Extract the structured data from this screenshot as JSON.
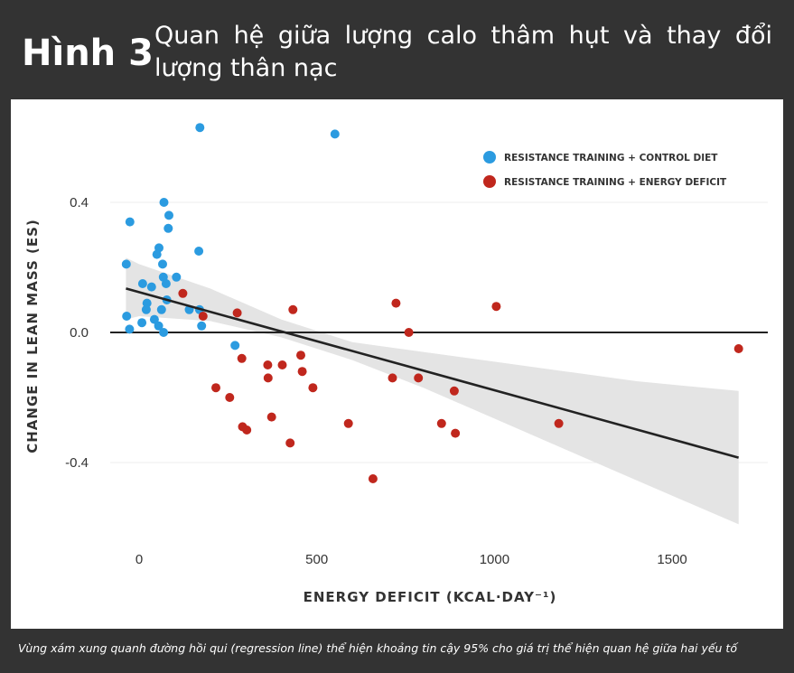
{
  "header": {
    "figure_number": "Hình 3",
    "title": "Quan hệ giữa lượng calo thâm hụt và thay đổi lượng thân nạc"
  },
  "caption": "Vùng xám xung quanh đường hồi qui (regression line) thể hiện khoảng tin cậy 95% cho giá trị thể hiện quan hệ giữa hai yếu tố",
  "colors": {
    "background": "#333333",
    "panel": "#ffffff",
    "control": "#2b9be0",
    "deficit": "#c0271d",
    "confidence_band": "#e4e4e4",
    "regression_line": "#222222"
  },
  "chart_data": {
    "type": "scatter",
    "xlabel": "ENERGY DEFICIT (KCAL·DAY⁻¹)",
    "ylabel": "CHANGE IN LEAN MASS (ES)",
    "xlim": [
      -60,
      1760
    ],
    "ylim": [
      -0.62,
      0.66
    ],
    "x_ticks": [
      {
        "value": 0,
        "label": "0"
      },
      {
        "value": 500,
        "label": "500"
      },
      {
        "value": 1000,
        "label": "1000"
      },
      {
        "value": 1500,
        "label": "1500"
      }
    ],
    "y_ticks": [
      {
        "value": 0.4,
        "label": "0.4"
      },
      {
        "value": 0.0,
        "label": "0.0"
      },
      {
        "value": -0.4,
        "label": "-0.4"
      }
    ],
    "grid": "horizontal",
    "legend_position": "top-right",
    "series": [
      {
        "name": "RESISTANCE TRAINING + CONTROL DIET",
        "color": "#2b9be0",
        "points": [
          [
            171,
            0.63
          ],
          [
            551,
            0.61
          ],
          [
            -26,
            0.34
          ],
          [
            70,
            0.4
          ],
          [
            84,
            0.36
          ],
          [
            82,
            0.32
          ],
          [
            168,
            0.25
          ],
          [
            56,
            0.26
          ],
          [
            50,
            0.24
          ],
          [
            -36,
            0.21
          ],
          [
            66,
            0.21
          ],
          [
            68,
            0.17
          ],
          [
            105,
            0.17
          ],
          [
            10,
            0.15
          ],
          [
            35,
            0.14
          ],
          [
            76,
            0.15
          ],
          [
            78,
            0.1
          ],
          [
            22,
            0.09
          ],
          [
            20,
            0.07
          ],
          [
            63,
            0.07
          ],
          [
            141,
            0.07
          ],
          [
            170,
            0.07
          ],
          [
            -35,
            0.05
          ],
          [
            8,
            0.03
          ],
          [
            43,
            0.04
          ],
          [
            55,
            0.02
          ],
          [
            176,
            0.02
          ],
          [
            -27,
            0.01
          ],
          [
            69,
            0.0
          ],
          [
            270,
            -0.04
          ]
        ]
      },
      {
        "name": "RESISTANCE TRAINING + ENERGY DEFICIT",
        "color": "#c0271d",
        "points": [
          [
            123,
            0.12
          ],
          [
            180,
            0.05
          ],
          [
            276,
            0.06
          ],
          [
            433,
            0.07
          ],
          [
            723,
            0.09
          ],
          [
            1005,
            0.08
          ],
          [
            759,
            0.0
          ],
          [
            1687,
            -0.05
          ],
          [
            455,
            -0.07
          ],
          [
            289,
            -0.08
          ],
          [
            362,
            -0.1
          ],
          [
            403,
            -0.1
          ],
          [
            459,
            -0.12
          ],
          [
            363,
            -0.14
          ],
          [
            713,
            -0.14
          ],
          [
            786,
            -0.14
          ],
          [
            489,
            -0.17
          ],
          [
            216,
            -0.17
          ],
          [
            887,
            -0.18
          ],
          [
            255,
            -0.2
          ],
          [
            373,
            -0.26
          ],
          [
            589,
            -0.28
          ],
          [
            851,
            -0.28
          ],
          [
            1181,
            -0.28
          ],
          [
            291,
            -0.29
          ],
          [
            303,
            -0.3
          ],
          [
            890,
            -0.31
          ],
          [
            425,
            -0.34
          ],
          [
            658,
            -0.45
          ]
        ]
      }
    ],
    "regression": {
      "x": [
        -37,
        1687
      ],
      "y": [
        0.135,
        -0.385
      ]
    },
    "confidence_band": {
      "x": [
        -37,
        0,
        200,
        400,
        600,
        800,
        1000,
        1200,
        1400,
        1687
      ],
      "lower": [
        0.04,
        0.05,
        0.035,
        -0.015,
        -0.085,
        -0.17,
        -0.265,
        -0.36,
        -0.455,
        -0.59
      ],
      "upper": [
        0.23,
        0.21,
        0.135,
        0.04,
        -0.03,
        -0.06,
        -0.09,
        -0.12,
        -0.15,
        -0.18
      ]
    }
  }
}
